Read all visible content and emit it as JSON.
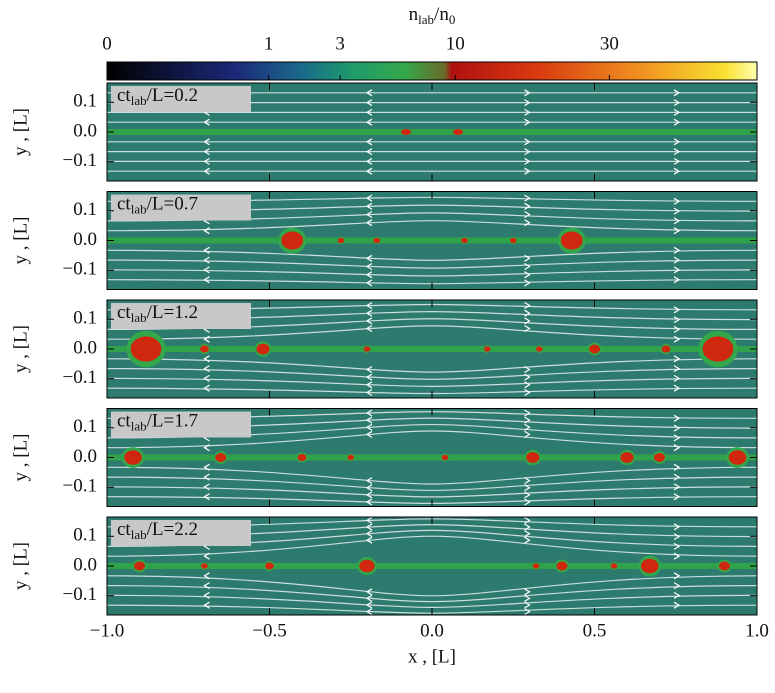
{
  "chart_data": {
    "type": "heatmap",
    "colorbar": {
      "title": [
        "n",
        "lab",
        "/n",
        "0"
      ],
      "clim": [
        0,
        65
      ],
      "scale": "cbrt",
      "ticks": [
        0,
        1,
        3,
        10,
        30
      ]
    },
    "panels": [
      {
        "label": [
          "ct",
          "lab",
          "/L=0.2"
        ]
      },
      {
        "label": [
          "ct",
          "lab",
          "/L=0.7"
        ]
      },
      {
        "label": [
          "ct",
          "lab",
          "/L=1.2"
        ]
      },
      {
        "label": [
          "ct",
          "lab",
          "/L=1.7"
        ]
      },
      {
        "label": [
          "ct",
          "lab",
          "/L=2.2"
        ]
      }
    ],
    "ylabel": "y , [L]",
    "xlabel": "x , [L]",
    "ylim": [
      -0.165,
      0.165
    ],
    "yticks": [
      0.1,
      {
        "value": 0,
        "label": "0.0"
      },
      {
        "value": -0.1,
        "label": "−0.1"
      }
    ],
    "xlim": [
      -1,
      1
    ],
    "xticks": [
      {
        "value": -1,
        "label": "−1.0"
      },
      {
        "value": -0.5,
        "label": "−0.5"
      },
      {
        "value": 0,
        "label": "0.0"
      },
      0.5,
      {
        "value": 1,
        "label": "1.0"
      }
    ]
  }
}
